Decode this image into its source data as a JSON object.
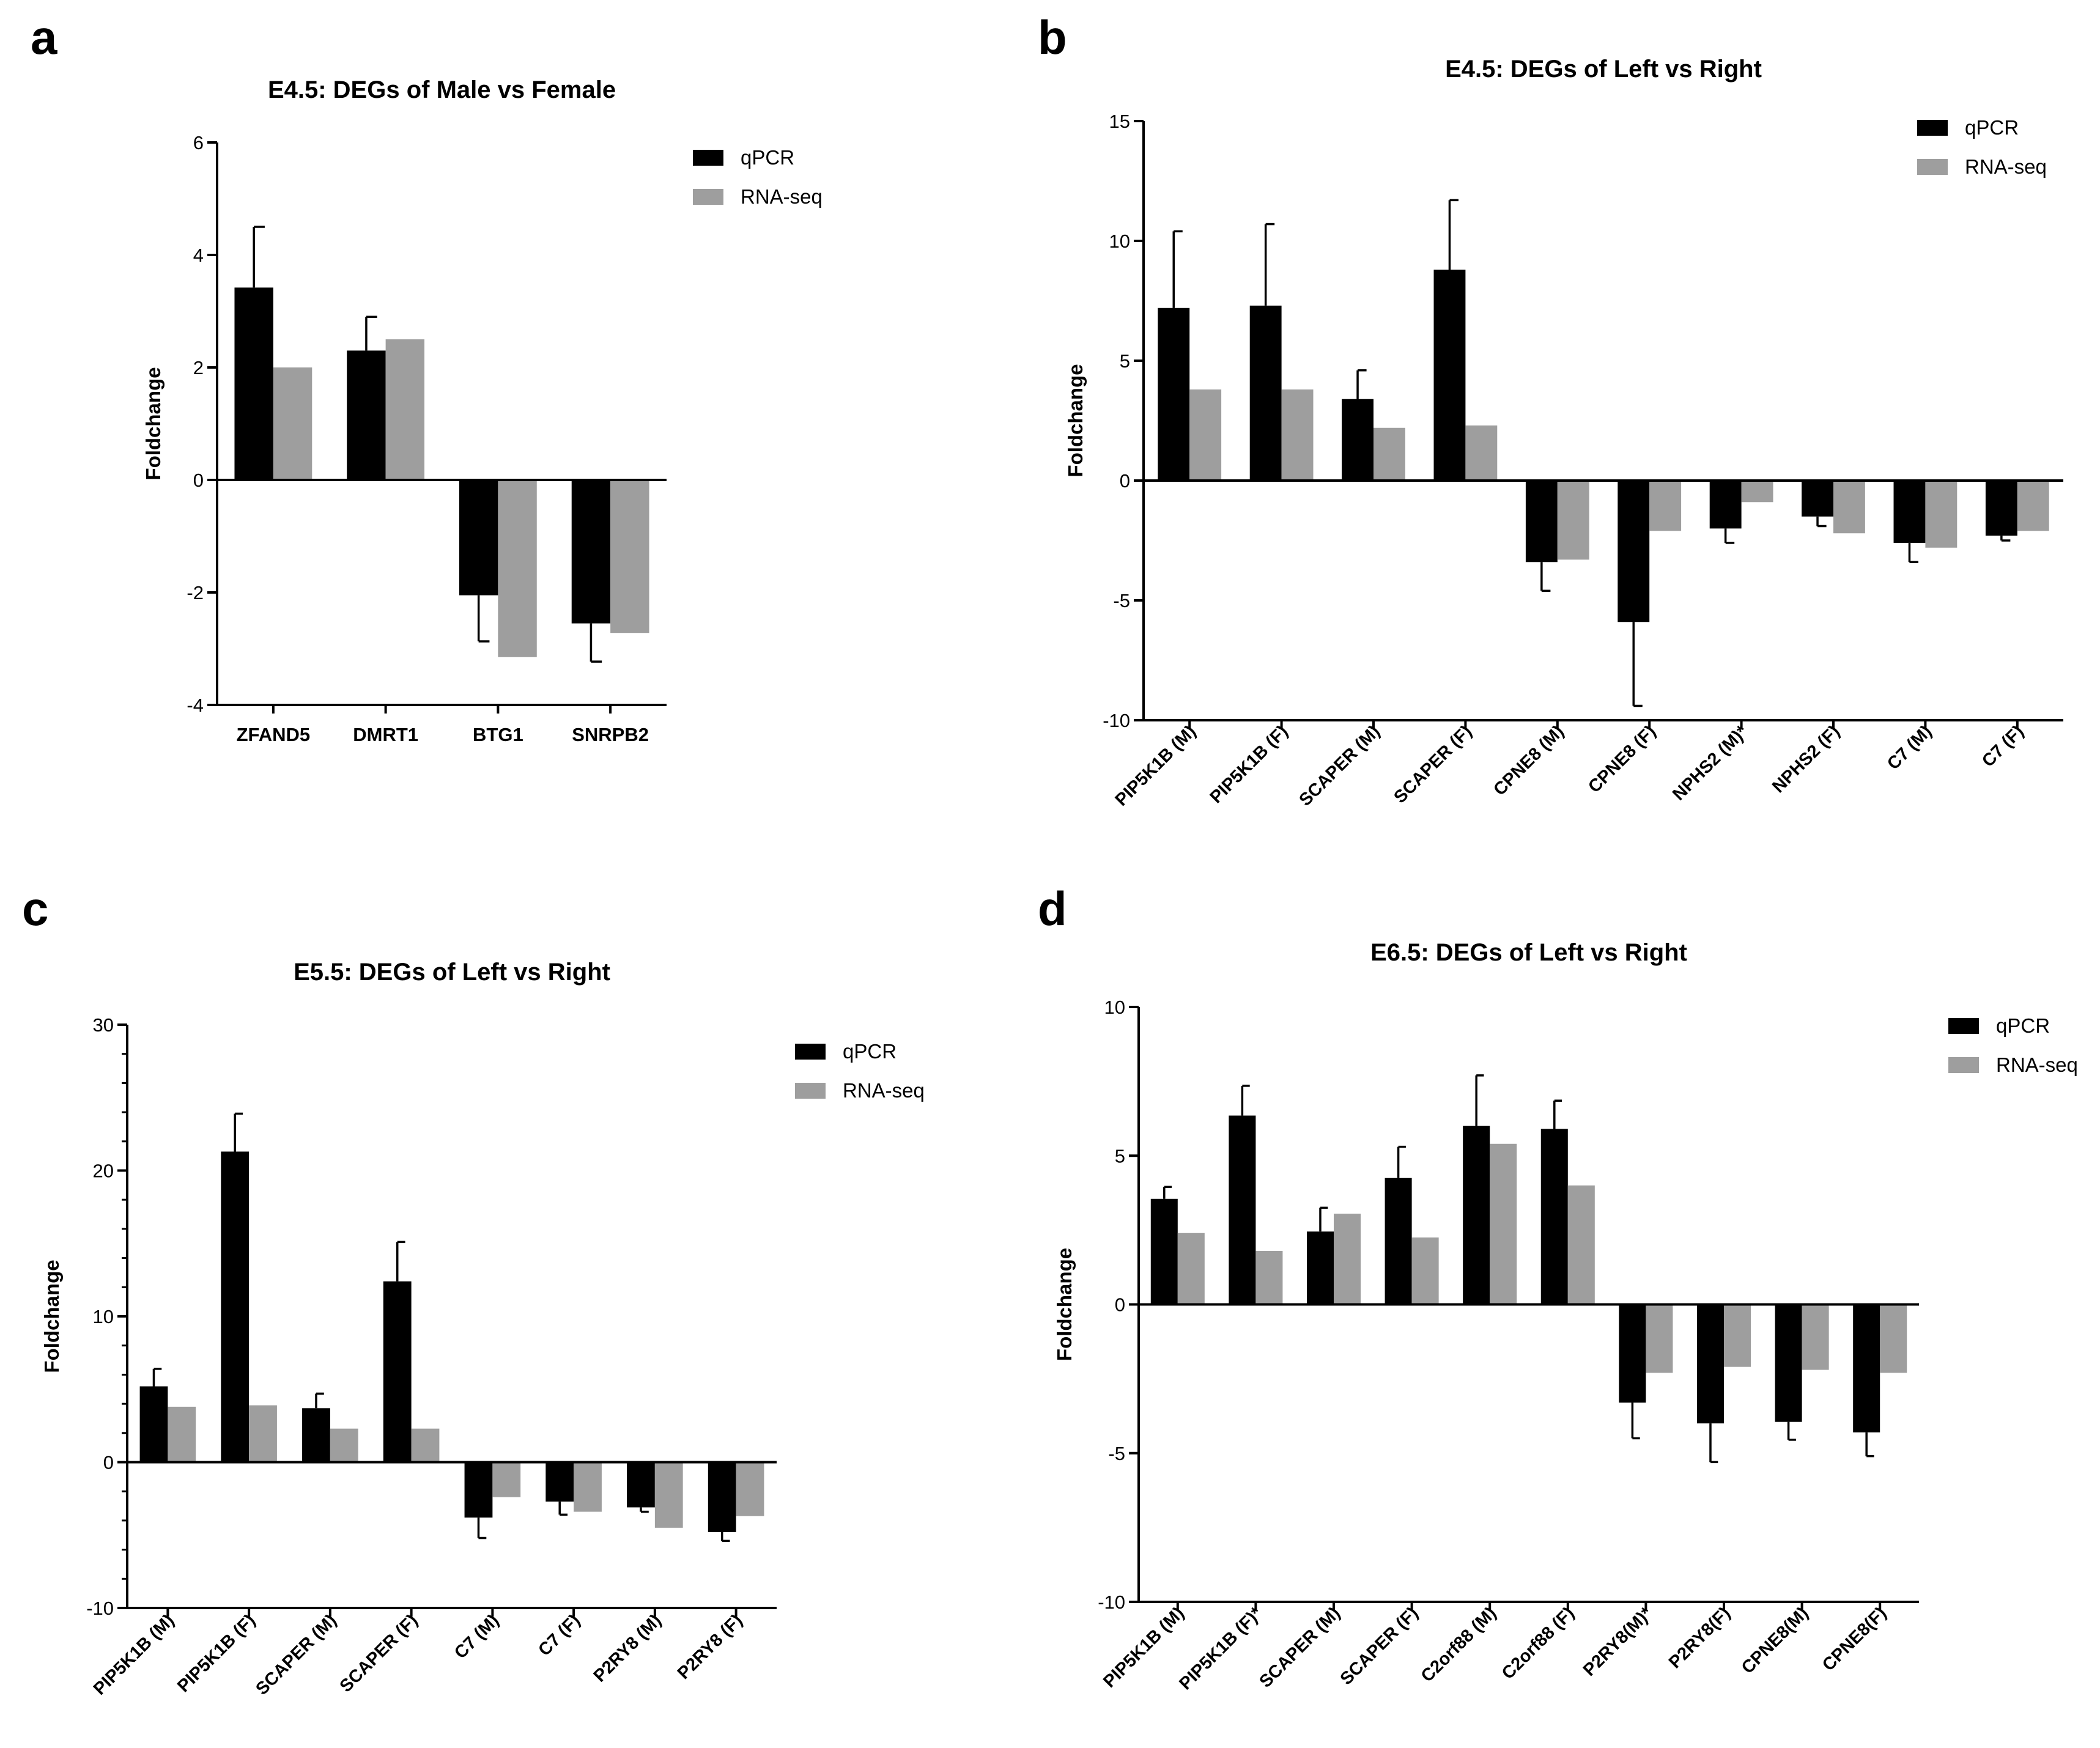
{
  "colors": {
    "qpcr": "#000000",
    "rnaseq": "#9e9e9e",
    "axis": "#000000",
    "text": "#000000"
  },
  "chart_data": [
    {
      "panel": "a",
      "type": "bar",
      "title": "E4.5: DEGs of Male vs Female",
      "xlabel": "",
      "ylabel": "Foldchange",
      "ylim": [
        -4,
        6
      ],
      "yticks": [
        -4,
        -2,
        0,
        2,
        4,
        6
      ],
      "minor_ticks": false,
      "rotate_labels": false,
      "legend_position": "top-right",
      "categories": [
        "ZFAND5",
        "DMRT1",
        "BTG1",
        "SNRPB2"
      ],
      "series": [
        {
          "name": "qPCR",
          "values": [
            3.42,
            2.3,
            -2.05,
            -2.55
          ],
          "errors": [
            1.08,
            0.6,
            0.82,
            0.68
          ]
        },
        {
          "name": "RNA-seq",
          "values": [
            2.0,
            2.5,
            -3.15,
            -2.72
          ]
        }
      ]
    },
    {
      "panel": "b",
      "type": "bar",
      "title": "E4.5: DEGs of Left vs Right",
      "xlabel": "",
      "ylabel": "Foldchange",
      "ylim": [
        -10,
        15
      ],
      "yticks": [
        -10,
        -5,
        0,
        5,
        10,
        15
      ],
      "minor_ticks": false,
      "rotate_labels": true,
      "legend_position": "top-right",
      "categories": [
        "PIP5K1B (M)",
        "PIP5K1B (F)",
        "SCAPER (M)",
        "SCAPER (F)",
        "CPNE8 (M)",
        "CPNE8 (F)",
        "NPHS2 (M)*",
        "NPHS2 (F)",
        "C7 (M)",
        "C7 (F)"
      ],
      "series": [
        {
          "name": "qPCR",
          "values": [
            7.2,
            7.3,
            3.4,
            8.8,
            -3.4,
            -5.9,
            -2.0,
            -1.5,
            -2.6,
            -2.3
          ],
          "errors": [
            3.2,
            3.4,
            1.2,
            2.9,
            1.2,
            3.5,
            0.6,
            0.4,
            0.8,
            0.2
          ]
        },
        {
          "name": "RNA-seq",
          "values": [
            3.8,
            3.8,
            2.2,
            2.3,
            -3.3,
            -2.1,
            -0.9,
            -2.2,
            -2.8,
            -2.1
          ]
        }
      ]
    },
    {
      "panel": "c",
      "type": "bar",
      "title": "E5.5: DEGs of Left vs Right",
      "xlabel": "",
      "ylabel": "Foldchange",
      "ylim": [
        -10,
        30
      ],
      "yticks": [
        -10,
        0,
        10,
        20,
        30
      ],
      "minor_ticks": true,
      "minor_step": 2,
      "rotate_labels": true,
      "legend_position": "top-right",
      "categories": [
        "PIP5K1B (M)",
        "PIP5K1B (F)",
        "SCAPER (M)",
        "SCAPER (F)",
        "C7 (M)",
        "C7 (F)",
        "P2RY8 (M)",
        "P2RY8 (F)"
      ],
      "series": [
        {
          "name": "qPCR",
          "values": [
            5.2,
            21.3,
            3.7,
            12.4,
            -3.8,
            -2.7,
            -3.1,
            -4.8
          ],
          "errors": [
            1.2,
            2.6,
            1.0,
            2.7,
            1.4,
            0.9,
            0.3,
            0.6
          ]
        },
        {
          "name": "RNA-seq",
          "values": [
            3.8,
            3.9,
            2.3,
            2.3,
            -2.4,
            -3.4,
            -4.5,
            -3.7
          ]
        }
      ]
    },
    {
      "panel": "d",
      "type": "bar",
      "title": "E6.5: DEGs of Left vs Right",
      "xlabel": "",
      "ylabel": "Foldchange",
      "ylim": [
        -10,
        10
      ],
      "yticks": [
        -10,
        -5,
        0,
        5,
        10
      ],
      "minor_ticks": false,
      "rotate_labels": true,
      "legend_position": "top-right",
      "categories": [
        "PIP5K1B (M)",
        "PIP5K1B (F)*",
        "SCAPER (M)",
        "SCAPER (F)",
        "C2orf88 (M)",
        "C2orf88 (F)",
        "P2RY8(M)*",
        "P2RY8(F)",
        "CPNE8(M)",
        "CPNE8(F)"
      ],
      "series": [
        {
          "name": "qPCR",
          "values": [
            3.55,
            6.35,
            2.45,
            4.25,
            6.0,
            5.9,
            -3.3,
            -4.0,
            -3.95,
            -4.3
          ],
          "errors": [
            0.4,
            1.0,
            0.8,
            1.05,
            1.7,
            0.95,
            1.2,
            1.3,
            0.6,
            0.8
          ]
        },
        {
          "name": "RNA-seq",
          "values": [
            2.4,
            1.8,
            3.05,
            2.25,
            5.4,
            4.0,
            -2.3,
            -2.1,
            -2.2,
            -2.3
          ]
        }
      ]
    }
  ]
}
